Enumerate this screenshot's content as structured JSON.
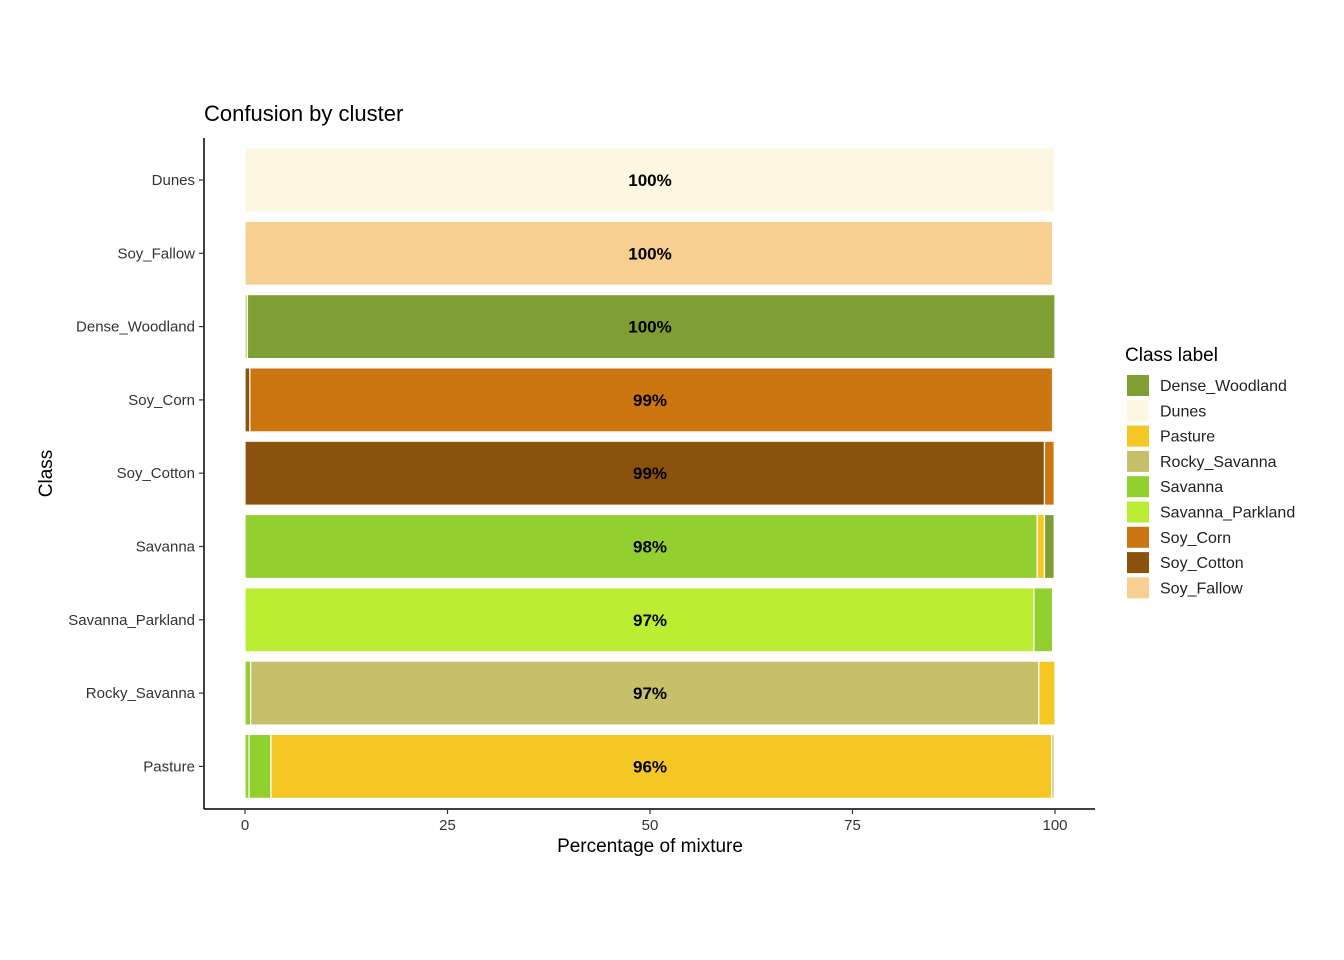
{
  "chart_data": {
    "type": "bar",
    "orientation": "horizontal",
    "stacked": true,
    "title": "Confusion by cluster",
    "xlabel": "Percentage of mixture",
    "ylabel": "Class",
    "xlim": [
      0,
      100
    ],
    "xticks": [
      0,
      25,
      50,
      75,
      100
    ],
    "xtick_labels": [
      "0",
      "25",
      "50",
      "75",
      "100"
    ],
    "grid": false,
    "legend_placement": "right",
    "legend_title": "Class label",
    "legend": [
      {
        "name": "Dense_Woodland",
        "color": "#7f9f34"
      },
      {
        "name": "Dunes",
        "color": "#fdf6e0"
      },
      {
        "name": "Pasture",
        "color": "#f5c724"
      },
      {
        "name": "Rocky_Savanna",
        "color": "#c6c06a"
      },
      {
        "name": "Savanna",
        "color": "#92d030"
      },
      {
        "name": "Savanna_Parkland",
        "color": "#bbee33"
      },
      {
        "name": "Soy_Corn",
        "color": "#cc7612"
      },
      {
        "name": "Soy_Cotton",
        "color": "#8b520e"
      },
      {
        "name": "Soy_Fallow",
        "color": "#f7cf90"
      }
    ],
    "categories": [
      "Dunes",
      "Soy_Fallow",
      "Dense_Woodland",
      "Soy_Corn",
      "Soy_Cotton",
      "Savanna",
      "Savanna_Parkland",
      "Rocky_Savanna",
      "Pasture"
    ],
    "bars": [
      {
        "class": "Dunes",
        "label": "100%",
        "segments": [
          {
            "class": "Dunes",
            "value": 99.9
          }
        ]
      },
      {
        "class": "Soy_Fallow",
        "label": "100%",
        "segments": [
          {
            "class": "Soy_Fallow",
            "value": 99.7
          }
        ]
      },
      {
        "class": "Dense_Woodland",
        "label": "100%",
        "segments": [
          {
            "class": "Rocky_Savanna",
            "value": 0.3
          },
          {
            "class": "Dense_Woodland",
            "value": 99.7
          }
        ]
      },
      {
        "class": "Soy_Corn",
        "label": "99%",
        "segments": [
          {
            "class": "Soy_Cotton",
            "value": 0.6
          },
          {
            "class": "Soy_Corn",
            "value": 99.1
          },
          {
            "class": "Dunes",
            "value": 0.2
          }
        ]
      },
      {
        "class": "Soy_Cotton",
        "label": "99%",
        "segments": [
          {
            "class": "Soy_Cotton",
            "value": 98.7
          },
          {
            "class": "Soy_Corn",
            "value": 1.2
          }
        ]
      },
      {
        "class": "Savanna",
        "label": "98%",
        "segments": [
          {
            "class": "Savanna",
            "value": 97.8
          },
          {
            "class": "Pasture",
            "value": 0.9
          },
          {
            "class": "Dense_Woodland",
            "value": 1.2
          }
        ]
      },
      {
        "class": "Savanna_Parkland",
        "label": "97%",
        "segments": [
          {
            "class": "Savanna_Parkland",
            "value": 97.4
          },
          {
            "class": "Savanna",
            "value": 2.3
          }
        ]
      },
      {
        "class": "Rocky_Savanna",
        "label": "97%",
        "segments": [
          {
            "class": "Savanna",
            "value": 0.7
          },
          {
            "class": "Rocky_Savanna",
            "value": 97.3
          },
          {
            "class": "Pasture",
            "value": 2.0
          }
        ]
      },
      {
        "class": "Pasture",
        "label": "96%",
        "segments": [
          {
            "class": "Savanna",
            "value": 0.5
          },
          {
            "class": "Savanna",
            "value": 2.7
          },
          {
            "class": "Pasture",
            "value": 96.4
          },
          {
            "class": "Rocky_Savanna",
            "value": 0.3
          }
        ]
      }
    ]
  }
}
